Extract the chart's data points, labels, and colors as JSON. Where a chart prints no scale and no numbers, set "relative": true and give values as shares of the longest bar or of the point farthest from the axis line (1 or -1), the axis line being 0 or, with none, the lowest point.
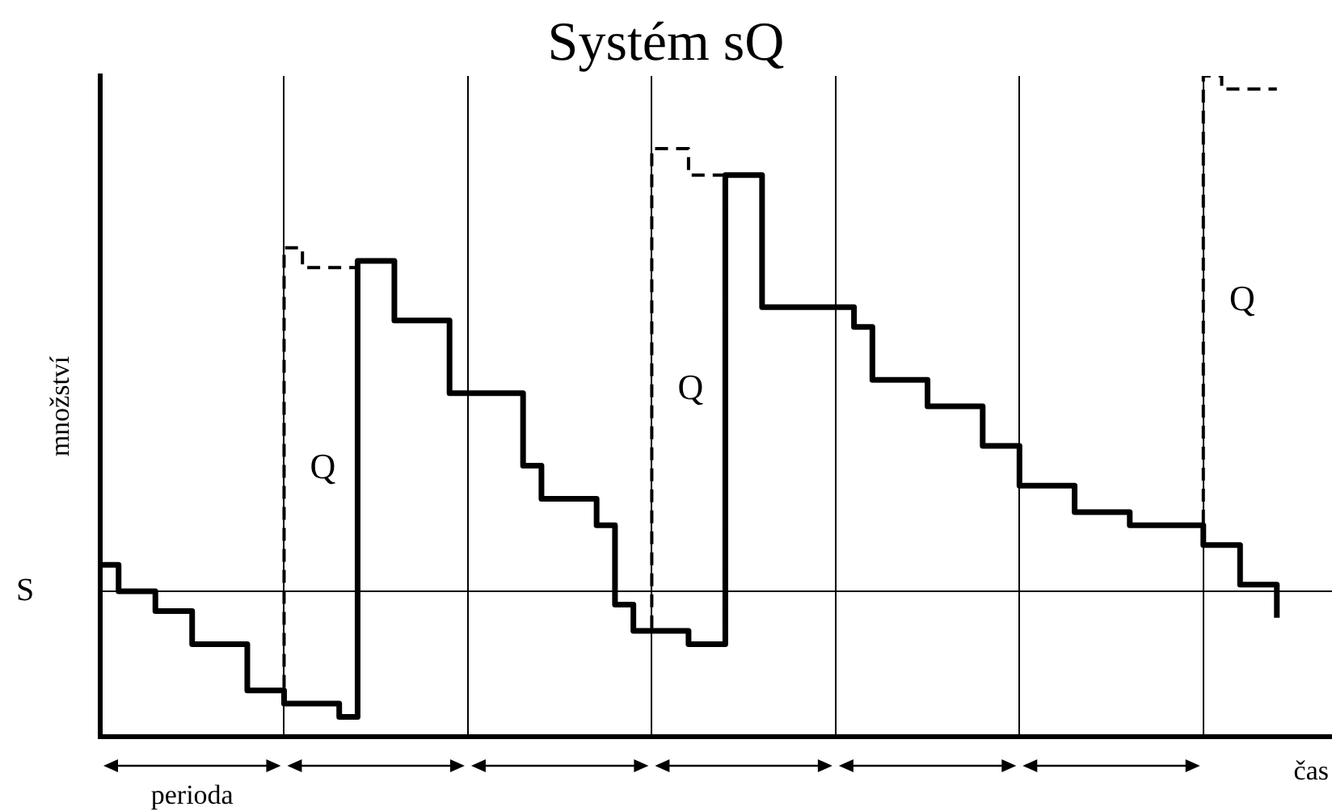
{
  "chart_data": {
    "type": "step",
    "relative": true,
    "title": "Systém sQ",
    "xlabel": "čas",
    "ylabel": "množství",
    "categories": [
      null,
      null,
      null,
      null,
      null,
      null,
      null,
      null,
      null,
      null,
      null,
      null,
      null,
      null,
      null,
      null,
      null,
      null,
      null,
      null,
      null,
      null,
      null,
      null,
      null,
      null,
      null,
      null,
      null,
      null,
      null,
      null,
      null,
      null,
      null,
      null,
      null,
      null,
      null,
      null,
      null,
      null,
      null,
      null,
      null,
      null,
      null,
      null,
      null,
      null,
      null,
      null,
      null,
      null,
      null,
      null,
      null,
      null,
      null,
      null,
      null,
      null,
      null,
      null,
      null,
      null,
      null,
      null
    ],
    "tick_labels": false,
    "grid": "x",
    "marker": "none",
    "ref_lines": [
      {
        "axis": "y",
        "value": 0.22,
        "label": "S",
        "color": "#000000"
      }
    ],
    "annotations": [
      "Q",
      "Q",
      "Q",
      "perioda"
    ],
    "series": [
      {
        "color": "#000000",
        "line_style": "solid",
        "values": [
          0.26,
          0.22,
          0.22,
          0.19,
          0.19,
          0.14,
          0.14,
          0.14,
          0.07,
          0.07,
          0.05,
          0.05,
          0.05,
          0.03,
          0.72,
          0.72,
          0.63,
          0.63,
          0.63,
          0.52,
          0.52,
          0.52,
          0.52,
          0.41,
          0.36,
          0.36,
          0.36,
          0.32,
          0.2,
          0.16,
          0.16,
          0.16,
          0.14,
          0.14,
          0.85,
          0.85,
          0.65,
          0.65,
          0.65,
          0.65,
          0.65,
          0.62,
          0.54,
          0.54,
          0.54,
          0.5,
          0.5,
          0.5,
          0.44,
          0.44,
          0.38,
          0.38,
          0.38,
          0.34,
          0.34,
          0.34,
          0.32,
          0.32,
          0.32,
          0.32,
          0.29,
          0.29,
          0.23,
          0.23,
          0.18,
          null,
          null,
          null
        ]
      },
      {
        "color": "#000000",
        "line_style": "dashed",
        "values": [
          null,
          null,
          null,
          null,
          null,
          null,
          null,
          null,
          null,
          0.07,
          0.74,
          0.71,
          0.71,
          0.71,
          0.71,
          null,
          null,
          null,
          null,
          null,
          null,
          null,
          null,
          null,
          null,
          null,
          null,
          null,
          null,
          null,
          null,
          null,
          null,
          null,
          null,
          null,
          null,
          null,
          null,
          null,
          null,
          null,
          null,
          null,
          null,
          null,
          null,
          null,
          null,
          null,
          null,
          null,
          null,
          null,
          null,
          null,
          null,
          null,
          null,
          null,
          null,
          null,
          null,
          null,
          null,
          null,
          null,
          null
        ]
      },
      {
        "color": "#000000",
        "line_style": "dashed",
        "values": [
          null,
          null,
          null,
          null,
          null,
          null,
          null,
          null,
          null,
          null,
          null,
          null,
          null,
          null,
          null,
          null,
          null,
          null,
          null,
          null,
          null,
          null,
          null,
          null,
          null,
          null,
          null,
          null,
          null,
          0.16,
          0.89,
          0.89,
          0.85,
          0.85,
          0.85,
          null,
          null,
          null,
          null,
          null,
          null,
          null,
          null,
          null,
          null,
          null,
          null,
          null,
          null,
          null,
          null,
          null,
          null,
          null,
          null,
          null,
          null,
          null,
          null,
          null,
          null,
          null,
          null,
          null,
          null,
          null,
          null,
          null
        ]
      },
      {
        "color": "#000000",
        "line_style": "dashed",
        "values": [
          null,
          null,
          null,
          null,
          null,
          null,
          null,
          null,
          null,
          null,
          null,
          null,
          null,
          null,
          null,
          null,
          null,
          null,
          null,
          null,
          null,
          null,
          null,
          null,
          null,
          null,
          null,
          null,
          null,
          null,
          null,
          null,
          null,
          null,
          null,
          null,
          null,
          null,
          null,
          null,
          null,
          null,
          null,
          null,
          null,
          null,
          null,
          null,
          null,
          null,
          null,
          null,
          null,
          null,
          null,
          null,
          null,
          null,
          null,
          0.32,
          1.0,
          0.98,
          0.98,
          0.98,
          0.98,
          null,
          null,
          null
        ]
      }
    ]
  }
}
